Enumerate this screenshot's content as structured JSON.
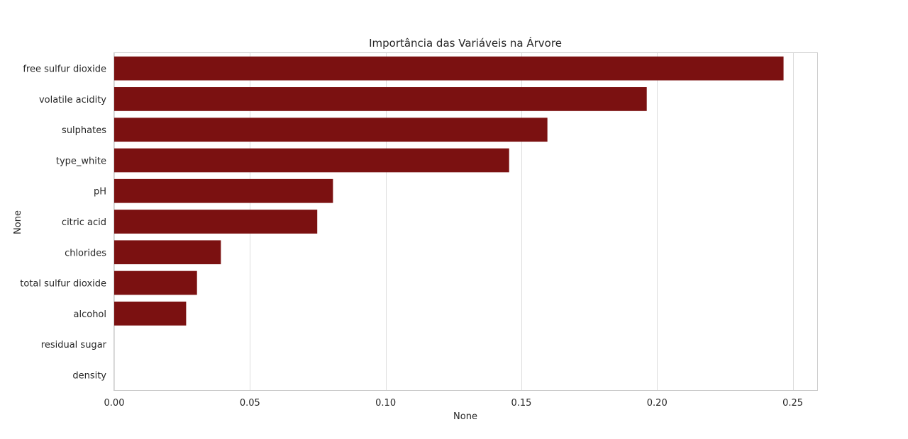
{
  "chart_data": {
    "type": "bar",
    "orientation": "horizontal",
    "title": "Importância das Variáveis na Árvore",
    "xlabel": "None",
    "ylabel": "None",
    "xlim": [
      0,
      0.259
    ],
    "xticks": [
      0.0,
      0.05,
      0.1,
      0.15,
      0.2,
      0.25
    ],
    "xtick_labels": [
      "0.00",
      "0.05",
      "0.10",
      "0.15",
      "0.20",
      "0.25"
    ],
    "grid": "vertical",
    "bar_color": "#7b1111",
    "categories": [
      "free sulfur dioxide",
      "volatile acidity",
      "sulphates",
      "type_white",
      "pH",
      "citric acid",
      "chlorides",
      "total sulfur dioxide",
      "alcohol",
      "residual sugar",
      "density"
    ],
    "values": [
      0.2466,
      0.1962,
      0.1596,
      0.1455,
      0.0806,
      0.0748,
      0.0393,
      0.0305,
      0.0265,
      0.0,
      0.0
    ]
  }
}
